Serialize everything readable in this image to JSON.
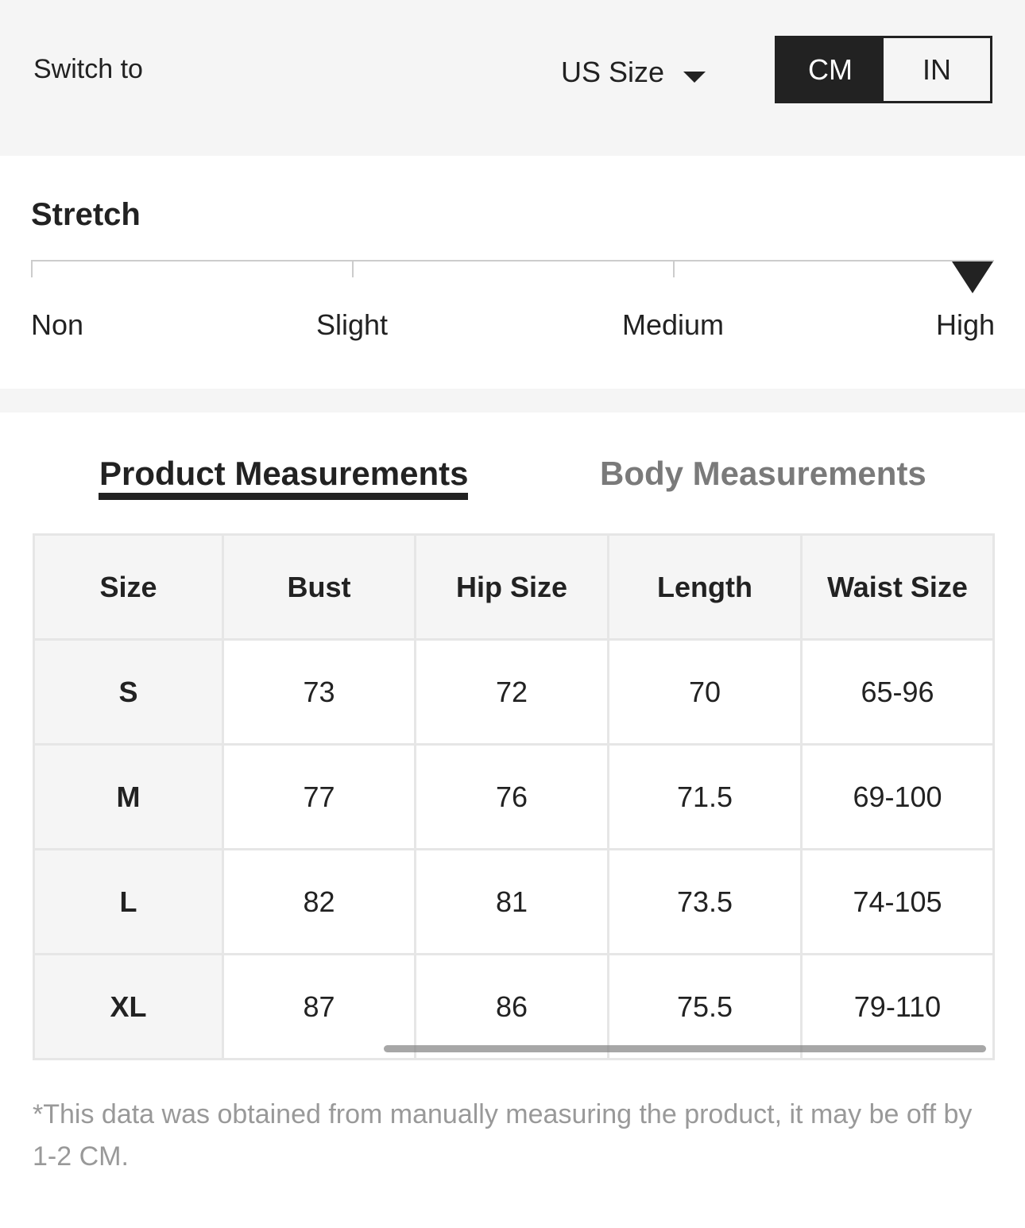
{
  "header": {
    "switch_label": "Switch to",
    "size_system": "US Size",
    "units": [
      "CM",
      "IN"
    ],
    "active_unit": "CM"
  },
  "stretch": {
    "title": "Stretch",
    "levels": [
      "Non",
      "Slight",
      "Medium",
      "High"
    ],
    "selected": "High"
  },
  "tabs": [
    {
      "label": "Product Measurements",
      "active": true
    },
    {
      "label": "Body Measurements",
      "active": false
    }
  ],
  "table": {
    "headers": [
      "Size",
      "Bust",
      "Hip Size",
      "Length",
      "Waist Size"
    ],
    "rows": [
      [
        "S",
        "73",
        "72",
        "70",
        "65-96"
      ],
      [
        "M",
        "77",
        "76",
        "71.5",
        "69-100"
      ],
      [
        "L",
        "82",
        "81",
        "73.5",
        "74-105"
      ],
      [
        "XL",
        "87",
        "86",
        "75.5",
        "79-110"
      ]
    ]
  },
  "note": "*This data was obtained from manually measuring the product, it may be off by 1-2 CM."
}
